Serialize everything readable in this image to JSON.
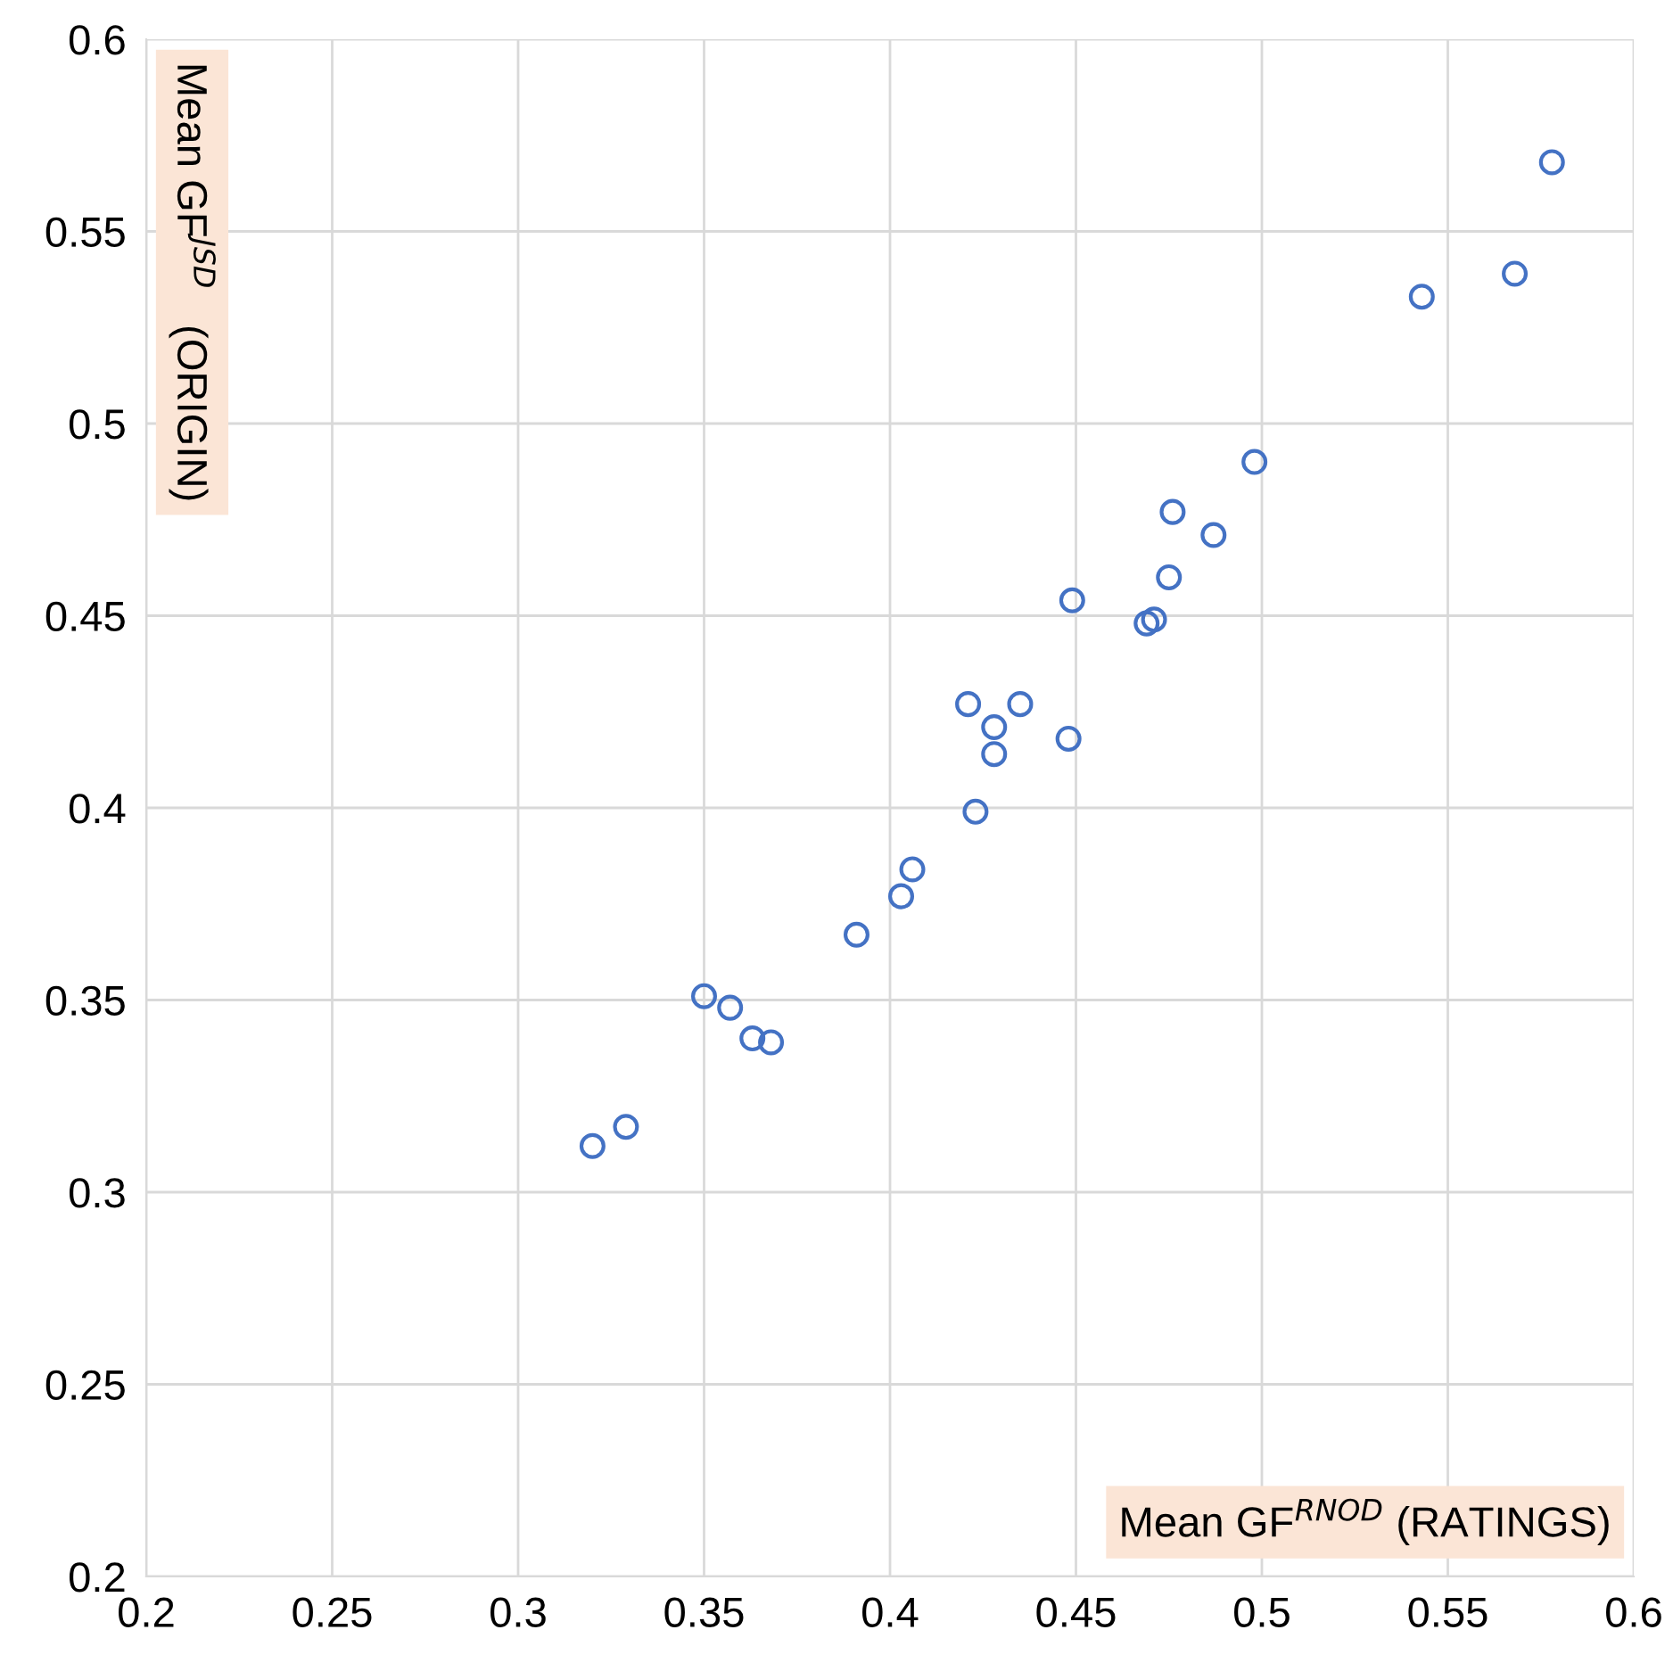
{
  "chart_data": {
    "type": "scatter",
    "xlabel": "Mean GF$^{RNOD}$ (RATINGS)",
    "ylabel": "Mean GF$^{JSD}$   (ORIGIN)",
    "series": [
      {
        "color": "#4472c4",
        "x": [
          0.32,
          0.329,
          0.35,
          0.357,
          0.363,
          0.368,
          0.391,
          0.403,
          0.406,
          0.423,
          0.428,
          0.428,
          0.421,
          0.435,
          0.448,
          0.449,
          0.469,
          0.471,
          0.475,
          0.476,
          0.487,
          0.498,
          0.543,
          0.568,
          0.578
        ],
        "values": [
          0.312,
          0.317,
          0.351,
          0.348,
          0.34,
          0.339,
          0.367,
          0.377,
          0.384,
          0.399,
          0.414,
          0.421,
          0.427,
          0.427,
          0.418,
          0.454,
          0.448,
          0.449,
          0.46,
          0.477,
          0.471,
          0.49,
          0.533,
          0.539,
          0.568
        ]
      }
    ],
    "marker": "circle",
    "grid": true,
    "legend": false,
    "xlim": [
      0.2,
      0.6
    ],
    "xticks": [
      0.2,
      0.25,
      0.3,
      0.35,
      0.4,
      0.45,
      0.5,
      0.55,
      0.6
    ],
    "ylim": [
      0.2,
      0.6
    ],
    "yticks": [
      0.2,
      0.25,
      0.3,
      0.35,
      0.4,
      0.45,
      0.5,
      0.55,
      0.6
    ]
  }
}
